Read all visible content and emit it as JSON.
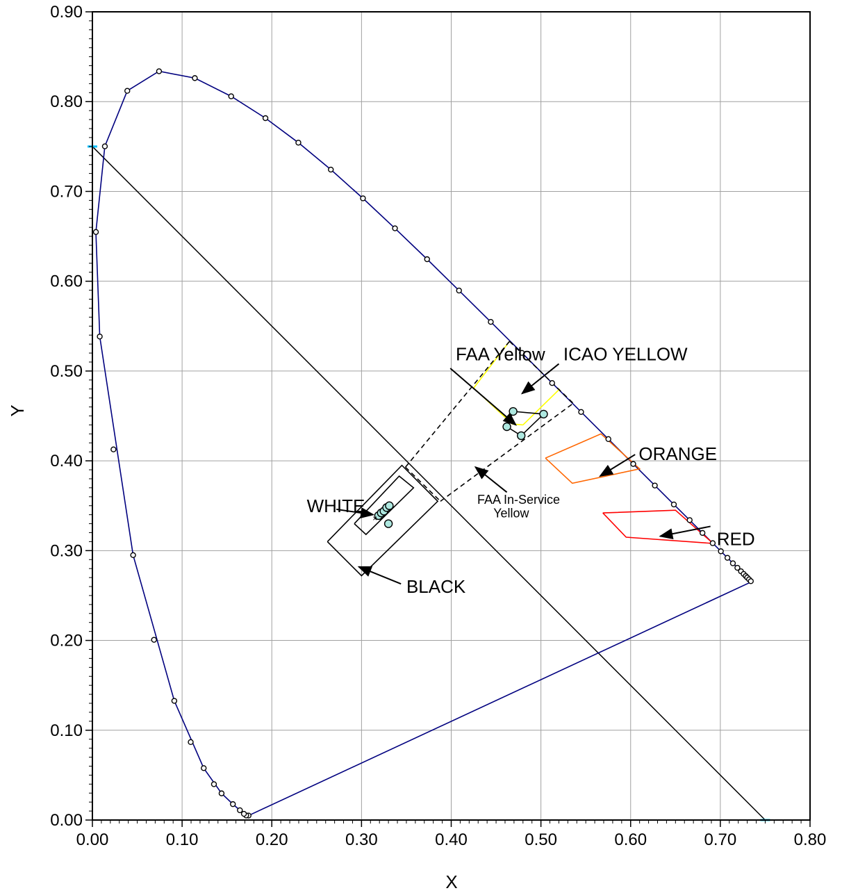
{
  "chart_data": {
    "type": "scatter",
    "xlabel": "X",
    "ylabel": "Y",
    "xlim": [
      0,
      0.8
    ],
    "ylim": [
      0,
      0.9
    ],
    "x_ticks": [
      "0.00",
      "0.10",
      "0.20",
      "0.30",
      "0.40",
      "0.50",
      "0.60",
      "0.70",
      "0.80"
    ],
    "y_ticks": [
      "0.00",
      "0.10",
      "0.20",
      "0.30",
      "0.40",
      "0.50",
      "0.60",
      "0.70",
      "0.80",
      "0.90"
    ],
    "grid": true,
    "spectral_locus": [
      [
        0.1741,
        0.005
      ],
      [
        0.1733,
        0.0048
      ],
      [
        0.1726,
        0.0048
      ],
      [
        0.1714,
        0.0051
      ],
      [
        0.1689,
        0.0069
      ],
      [
        0.1644,
        0.0109
      ],
      [
        0.1566,
        0.0177
      ],
      [
        0.144,
        0.0297
      ],
      [
        0.1241,
        0.0578
      ],
      [
        0.0913,
        0.1327
      ],
      [
        0.0454,
        0.295
      ],
      [
        0.0082,
        0.5384
      ],
      [
        0.0039,
        0.6548
      ],
      [
        0.0139,
        0.7502
      ],
      [
        0.0389,
        0.812
      ],
      [
        0.0743,
        0.8338
      ],
      [
        0.1142,
        0.8262
      ],
      [
        0.1547,
        0.8059
      ],
      [
        0.1929,
        0.7816
      ],
      [
        0.2296,
        0.7543
      ],
      [
        0.2658,
        0.7243
      ],
      [
        0.3016,
        0.6923
      ],
      [
        0.3373,
        0.6589
      ],
      [
        0.3731,
        0.6245
      ],
      [
        0.4087,
        0.5896
      ],
      [
        0.4441,
        0.5547
      ],
      [
        0.4788,
        0.5202
      ],
      [
        0.5125,
        0.4866
      ],
      [
        0.5448,
        0.4544
      ],
      [
        0.5752,
        0.4242
      ],
      [
        0.6029,
        0.3965
      ],
      [
        0.627,
        0.3725
      ],
      [
        0.6482,
        0.3514
      ],
      [
        0.6658,
        0.334
      ],
      [
        0.6801,
        0.3197
      ],
      [
        0.6915,
        0.3083
      ],
      [
        0.7006,
        0.2993
      ],
      [
        0.7079,
        0.292
      ],
      [
        0.714,
        0.2859
      ],
      [
        0.719,
        0.2809
      ],
      [
        0.723,
        0.277
      ],
      [
        0.726,
        0.274
      ],
      [
        0.7283,
        0.2717
      ],
      [
        0.73,
        0.27
      ],
      [
        0.7311,
        0.2689
      ],
      [
        0.732,
        0.268
      ],
      [
        0.7327,
        0.2673
      ],
      [
        0.7334,
        0.2666
      ],
      [
        0.734,
        0.266
      ],
      [
        0.7344,
        0.2656
      ],
      [
        0.7346,
        0.2654
      ],
      [
        0.7347,
        0.2653
      ]
    ],
    "locus_markers": [
      [
        0.1741,
        0.005
      ],
      [
        0.1714,
        0.0051
      ],
      [
        0.1689,
        0.0069
      ],
      [
        0.1644,
        0.0109
      ],
      [
        0.1566,
        0.0177
      ],
      [
        0.144,
        0.0297
      ],
      [
        0.1355,
        0.0399
      ],
      [
        0.1241,
        0.0578
      ],
      [
        0.1096,
        0.0868
      ],
      [
        0.0913,
        0.1327
      ],
      [
        0.0687,
        0.2007
      ],
      [
        0.0454,
        0.295
      ],
      [
        0.0235,
        0.4127
      ],
      [
        0.0082,
        0.5384
      ],
      [
        0.0039,
        0.6548
      ],
      [
        0.0139,
        0.7502
      ],
      [
        0.0389,
        0.812
      ],
      [
        0.0743,
        0.8338
      ],
      [
        0.1142,
        0.8262
      ],
      [
        0.1547,
        0.8059
      ],
      [
        0.1929,
        0.7816
      ],
      [
        0.2296,
        0.7543
      ],
      [
        0.2658,
        0.7243
      ],
      [
        0.3016,
        0.6923
      ],
      [
        0.3373,
        0.6589
      ],
      [
        0.3731,
        0.6245
      ],
      [
        0.4087,
        0.5896
      ],
      [
        0.4441,
        0.5547
      ],
      [
        0.4788,
        0.5202
      ],
      [
        0.5125,
        0.4866
      ],
      [
        0.5448,
        0.4544
      ],
      [
        0.5752,
        0.4242
      ],
      [
        0.6029,
        0.3965
      ],
      [
        0.627,
        0.3725
      ],
      [
        0.6482,
        0.3514
      ],
      [
        0.6658,
        0.334
      ],
      [
        0.6801,
        0.3197
      ],
      [
        0.6915,
        0.3083
      ],
      [
        0.7006,
        0.2993
      ],
      [
        0.7079,
        0.292
      ],
      [
        0.714,
        0.2859
      ],
      [
        0.719,
        0.2809
      ],
      [
        0.723,
        0.277
      ],
      [
        0.726,
        0.274
      ],
      [
        0.7283,
        0.2717
      ],
      [
        0.73,
        0.27
      ],
      [
        0.732,
        0.268
      ],
      [
        0.734,
        0.266
      ]
    ],
    "purple_line": [
      [
        0.1741,
        0.005
      ],
      [
        0.7347,
        0.2653
      ]
    ],
    "reference_line": [
      [
        0.0,
        0.75
      ],
      [
        0.75,
        0.0
      ]
    ],
    "reference_endpoints": [
      [
        0.0,
        0.75
      ],
      [
        0.75,
        0.0
      ]
    ],
    "regions": [
      {
        "name": "FAA Yellow",
        "color": "#ffff00",
        "dashed": false,
        "points": [
          [
            0.425,
            0.481
          ],
          [
            0.465,
            0.533
          ]
        ]
      },
      {
        "name": "FAA Yellow",
        "color": "#ffff00",
        "dashed": false,
        "points": [
          [
            0.48,
            0.44
          ],
          [
            0.521,
            0.48
          ]
        ]
      },
      {
        "name": "FAA Yellow",
        "color": "#ffff00",
        "dashed": false,
        "points": [
          [
            0.425,
            0.481
          ],
          [
            0.468,
            0.441
          ],
          [
            0.48,
            0.44
          ]
        ]
      },
      {
        "name": "FAA In-Service Yellow",
        "color": "#000000",
        "dashed": true,
        "points": [
          [
            0.465,
            0.533
          ],
          [
            0.536,
            0.464
          ]
        ]
      },
      {
        "name": "FAA In-Service Yellow",
        "color": "#000000",
        "dashed": true,
        "points": [
          [
            0.349,
            0.393
          ],
          [
            0.465,
            0.533
          ]
        ]
      },
      {
        "name": "FAA In-Service Yellow",
        "color": "#000000",
        "dashed": true,
        "points": [
          [
            0.388,
            0.355
          ],
          [
            0.536,
            0.464
          ]
        ]
      },
      {
        "name": "FAA In-Service Yellow",
        "color": "#000000",
        "dashed": true,
        "points": [
          [
            0.349,
            0.393
          ],
          [
            0.388,
            0.355
          ]
        ]
      },
      {
        "name": "ORANGE",
        "color": "#ff6600",
        "dashed": false,
        "points": [
          [
            0.505,
            0.403
          ],
          [
            0.567,
            0.43
          ],
          [
            0.61,
            0.391
          ],
          [
            0.535,
            0.375
          ],
          [
            0.505,
            0.403
          ]
        ]
      },
      {
        "name": "RED",
        "color": "#ff0000",
        "dashed": false,
        "points": [
          [
            0.569,
            0.342
          ],
          [
            0.65,
            0.345
          ],
          [
            0.692,
            0.308
          ],
          [
            0.595,
            0.315
          ],
          [
            0.569,
            0.342
          ]
        ]
      },
      {
        "name": "BLACK",
        "color": "#000000",
        "dashed": false,
        "points": [
          [
            0.262,
            0.31
          ],
          [
            0.345,
            0.395
          ],
          [
            0.385,
            0.355
          ],
          [
            0.3,
            0.272
          ],
          [
            0.262,
            0.31
          ]
        ]
      },
      {
        "name": "WHITE",
        "color": "#000000",
        "dashed": false,
        "points": [
          [
            0.292,
            0.33
          ],
          [
            0.342,
            0.383
          ],
          [
            0.358,
            0.37
          ],
          [
            0.305,
            0.318
          ],
          [
            0.292,
            0.33
          ]
        ]
      },
      {
        "name": "ICAO YELLOW",
        "color": "#000000",
        "dashed": false,
        "points": [
          [
            0.469,
            0.455
          ],
          [
            0.503,
            0.452
          ],
          [
            0.478,
            0.428
          ],
          [
            0.462,
            0.438
          ],
          [
            0.469,
            0.455
          ]
        ]
      }
    ],
    "measured_points": [
      [
        0.469,
        0.455
      ],
      [
        0.503,
        0.452
      ],
      [
        0.478,
        0.428
      ],
      [
        0.462,
        0.438
      ],
      [
        0.319,
        0.339
      ],
      [
        0.322,
        0.342
      ],
      [
        0.325,
        0.344
      ],
      [
        0.328,
        0.348
      ],
      [
        0.331,
        0.35
      ],
      [
        0.33,
        0.33
      ]
    ],
    "white_mark": [
      0.315,
      0.336
    ],
    "annotations": [
      {
        "text": "FAA Yellow",
        "text_x": 0.405,
        "text_y": 0.512,
        "arrow_from": [
          0.399,
          0.503
        ],
        "arrow_to": [
          0.472,
          0.44
        ]
      },
      {
        "text": "ICAO YELLOW",
        "text_x": 0.525,
        "text_y": 0.512,
        "arrow_from": [
          0.52,
          0.508
        ],
        "arrow_to": [
          0.479,
          0.475
        ]
      },
      {
        "text": "ORANGE",
        "text_x": 0.609,
        "text_y": 0.401,
        "arrow_from": [
          0.605,
          0.407
        ],
        "arrow_to": [
          0.566,
          0.383
        ]
      },
      {
        "text": "RED",
        "text_x": 0.696,
        "text_y": 0.306,
        "arrow_from": [
          0.689,
          0.327
        ],
        "arrow_to": [
          0.633,
          0.316
        ]
      },
      {
        "text": "WHITE",
        "text_x": 0.239,
        "text_y": 0.343,
        "arrow_from": [
          0.272,
          0.346
        ],
        "arrow_to": [
          0.313,
          0.34
        ]
      },
      {
        "text": "BLACK",
        "text_x": 0.35,
        "text_y": 0.253,
        "arrow_from": [
          0.344,
          0.263
        ],
        "arrow_to": [
          0.297,
          0.282
        ]
      },
      {
        "text": "FAA In-Service",
        "text_x": 0.429,
        "text_y": 0.352,
        "arrow_from": [
          0.462,
          0.365
        ],
        "arrow_to": [
          0.427,
          0.393
        ]
      },
      {
        "text": "Yellow",
        "text_x": 0.447,
        "text_y": 0.337,
        "arrow_from": null,
        "arrow_to": null
      }
    ]
  }
}
